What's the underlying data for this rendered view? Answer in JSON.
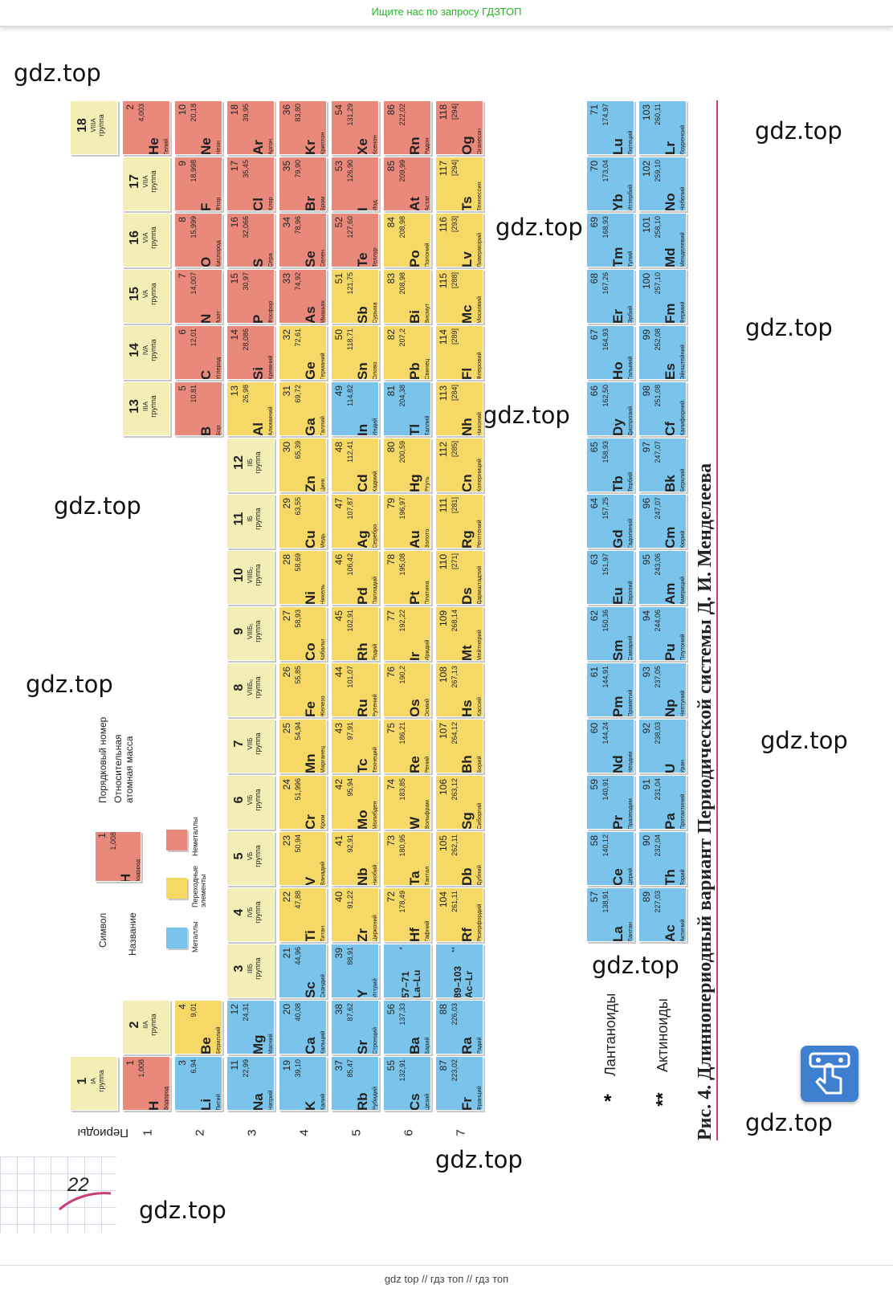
{
  "top_banner": "Ищите нас по запросу ГДЗТОП",
  "bottom_banner": "gdz top  //  гдз топ  //  гдз топ",
  "watermark": "gdz.top",
  "page_number": "22",
  "caption": "Рис. 4. Длиннопериодный вариант Периодической системы Д. И. Менделеева",
  "periods_label": "Периоды",
  "periods": [
    "1",
    "2",
    "3",
    "4",
    "5",
    "6",
    "7"
  ],
  "colors": {
    "nonmetal": "#e9897b",
    "transition": "#f6d867",
    "metal": "#7ac4ec",
    "group": "#f3eeb6"
  },
  "legend": {
    "symbol_label": "Символ",
    "name_label": "Название",
    "number_label": "Порядковый номер",
    "mass_label": "Относительная атомная масса",
    "sample": {
      "sym": "H",
      "num": "1",
      "mass": "1,008",
      "name": "Водород"
    },
    "metals": "Металлы",
    "transition": "Переходные элементы",
    "nonmetals": "Неметаллы"
  },
  "groups": [
    {
      "n": "1",
      "r": "IA",
      "w": "группа"
    },
    {
      "n": "2",
      "r": "IIA",
      "w": "группа"
    },
    {
      "n": "3",
      "r": "IIIБ",
      "w": "группа"
    },
    {
      "n": "4",
      "r": "IVБ",
      "w": "группа"
    },
    {
      "n": "5",
      "r": "VБ",
      "w": "группа"
    },
    {
      "n": "6",
      "r": "VIБ",
      "w": "группа"
    },
    {
      "n": "7",
      "r": "VIIБ",
      "w": "группа"
    },
    {
      "n": "8",
      "r": "VIIIБ₀",
      "w": "группа"
    },
    {
      "n": "9",
      "r": "VIIIБ₁",
      "w": "группа"
    },
    {
      "n": "10",
      "r": "VIIIБ₂",
      "w": "группа"
    },
    {
      "n": "11",
      "r": "IБ",
      "w": "группа"
    },
    {
      "n": "12",
      "r": "IIБ",
      "w": "группа"
    },
    {
      "n": "13",
      "r": "IIIA",
      "w": "группа"
    },
    {
      "n": "14",
      "r": "IVA",
      "w": "группа"
    },
    {
      "n": "15",
      "r": "VA",
      "w": "группа"
    },
    {
      "n": "16",
      "r": "VIA",
      "w": "группа"
    },
    {
      "n": "17",
      "r": "VIIA",
      "w": "группа"
    },
    {
      "n": "18",
      "r": "VIIIA",
      "w": "группа"
    }
  ],
  "elements": [
    {
      "s": "H",
      "n": "1",
      "m": "1,008",
      "nm": "Водород",
      "p": 1,
      "g": 1,
      "t": "nonmetal"
    },
    {
      "s": "He",
      "n": "2",
      "m": "4,003",
      "nm": "Гелий",
      "p": 1,
      "g": 18,
      "t": "nonmetal"
    },
    {
      "s": "Li",
      "n": "3",
      "m": "6,94",
      "nm": "Литий",
      "p": 2,
      "g": 1,
      "t": "metal"
    },
    {
      "s": "Be",
      "n": "4",
      "m": "9,01",
      "nm": "Бериллий",
      "p": 2,
      "g": 2,
      "t": "transition"
    },
    {
      "s": "B",
      "n": "5",
      "m": "10,81",
      "nm": "Бор",
      "p": 2,
      "g": 13,
      "t": "nonmetal"
    },
    {
      "s": "C",
      "n": "6",
      "m": "12,01",
      "nm": "Углерод",
      "p": 2,
      "g": 14,
      "t": "nonmetal"
    },
    {
      "s": "N",
      "n": "7",
      "m": "14,007",
      "nm": "Азот",
      "p": 2,
      "g": 15,
      "t": "nonmetal"
    },
    {
      "s": "O",
      "n": "8",
      "m": "15,999",
      "nm": "Кислород",
      "p": 2,
      "g": 16,
      "t": "nonmetal"
    },
    {
      "s": "F",
      "n": "9",
      "m": "18,998",
      "nm": "Фтор",
      "p": 2,
      "g": 17,
      "t": "nonmetal"
    },
    {
      "s": "Ne",
      "n": "10",
      "m": "20,18",
      "nm": "Неон",
      "p": 2,
      "g": 18,
      "t": "nonmetal"
    },
    {
      "s": "Na",
      "n": "11",
      "m": "22,99",
      "nm": "Натрий",
      "p": 3,
      "g": 1,
      "t": "metal"
    },
    {
      "s": "Mg",
      "n": "12",
      "m": "24,31",
      "nm": "Магний",
      "p": 3,
      "g": 2,
      "t": "metal"
    },
    {
      "s": "Al",
      "n": "13",
      "m": "26,98",
      "nm": "Алюминий",
      "p": 3,
      "g": 13,
      "t": "transition"
    },
    {
      "s": "Si",
      "n": "14",
      "m": "28,086",
      "nm": "Кремний",
      "p": 3,
      "g": 14,
      "t": "nonmetal"
    },
    {
      "s": "P",
      "n": "15",
      "m": "30,97",
      "nm": "Фосфор",
      "p": 3,
      "g": 15,
      "t": "nonmetal"
    },
    {
      "s": "S",
      "n": "16",
      "m": "32,066",
      "nm": "Сера",
      "p": 3,
      "g": 16,
      "t": "nonmetal"
    },
    {
      "s": "Cl",
      "n": "17",
      "m": "35,45",
      "nm": "Хлор",
      "p": 3,
      "g": 17,
      "t": "nonmetal"
    },
    {
      "s": "Ar",
      "n": "18",
      "m": "39,95",
      "nm": "Аргон",
      "p": 3,
      "g": 18,
      "t": "nonmetal"
    },
    {
      "s": "K",
      "n": "19",
      "m": "39,10",
      "nm": "Калий",
      "p": 4,
      "g": 1,
      "t": "metal"
    },
    {
      "s": "Ca",
      "n": "20",
      "m": "40,08",
      "nm": "Кальций",
      "p": 4,
      "g": 2,
      "t": "metal"
    },
    {
      "s": "Sc",
      "n": "21",
      "m": "44,96",
      "nm": "Скандий",
      "p": 4,
      "g": 3,
      "t": "metal"
    },
    {
      "s": "Ti",
      "n": "22",
      "m": "47,88",
      "nm": "Титан",
      "p": 4,
      "g": 4,
      "t": "transition"
    },
    {
      "s": "V",
      "n": "23",
      "m": "50,94",
      "nm": "Ванадий",
      "p": 4,
      "g": 5,
      "t": "transition"
    },
    {
      "s": "Cr",
      "n": "24",
      "m": "51,996",
      "nm": "Хром",
      "p": 4,
      "g": 6,
      "t": "transition"
    },
    {
      "s": "Mn",
      "n": "25",
      "m": "54,94",
      "nm": "Марганец",
      "p": 4,
      "g": 7,
      "t": "transition"
    },
    {
      "s": "Fe",
      "n": "26",
      "m": "55,85",
      "nm": "Железо",
      "p": 4,
      "g": 8,
      "t": "transition"
    },
    {
      "s": "Co",
      "n": "27",
      "m": "58,93",
      "nm": "Кобальт",
      "p": 4,
      "g": 9,
      "t": "transition"
    },
    {
      "s": "Ni",
      "n": "28",
      "m": "58,69",
      "nm": "Никель",
      "p": 4,
      "g": 10,
      "t": "transition"
    },
    {
      "s": "Cu",
      "n": "29",
      "m": "63,55",
      "nm": "Медь",
      "p": 4,
      "g": 11,
      "t": "transition"
    },
    {
      "s": "Zn",
      "n": "30",
      "m": "65,39",
      "nm": "Цинк",
      "p": 4,
      "g": 12,
      "t": "transition"
    },
    {
      "s": "Ga",
      "n": "31",
      "m": "69,72",
      "nm": "Галлий",
      "p": 4,
      "g": 13,
      "t": "transition"
    },
    {
      "s": "Ge",
      "n": "32",
      "m": "72,61",
      "nm": "Германий",
      "p": 4,
      "g": 14,
      "t": "transition"
    },
    {
      "s": "As",
      "n": "33",
      "m": "74,92",
      "nm": "Мышьяк",
      "p": 4,
      "g": 15,
      "t": "nonmetal"
    },
    {
      "s": "Se",
      "n": "34",
      "m": "78,96",
      "nm": "Селен",
      "p": 4,
      "g": 16,
      "t": "nonmetal"
    },
    {
      "s": "Br",
      "n": "35",
      "m": "79,90",
      "nm": "Бром",
      "p": 4,
      "g": 17,
      "t": "nonmetal"
    },
    {
      "s": "Kr",
      "n": "36",
      "m": "83,80",
      "nm": "Криптон",
      "p": 4,
      "g": 18,
      "t": "nonmetal"
    },
    {
      "s": "Rb",
      "n": "37",
      "m": "85,47",
      "nm": "Рубидий",
      "p": 5,
      "g": 1,
      "t": "metal"
    },
    {
      "s": "Sr",
      "n": "38",
      "m": "87,62",
      "nm": "Стронций",
      "p": 5,
      "g": 2,
      "t": "metal"
    },
    {
      "s": "Y",
      "n": "39",
      "m": "88,91",
      "nm": "Иттрий",
      "p": 5,
      "g": 3,
      "t": "metal"
    },
    {
      "s": "Zr",
      "n": "40",
      "m": "91,22",
      "nm": "Цирконий",
      "p": 5,
      "g": 4,
      "t": "transition"
    },
    {
      "s": "Nb",
      "n": "41",
      "m": "92,91",
      "nm": "Ниобий",
      "p": 5,
      "g": 5,
      "t": "transition"
    },
    {
      "s": "Mo",
      "n": "42",
      "m": "95,94",
      "nm": "Молибден",
      "p": 5,
      "g": 6,
      "t": "transition"
    },
    {
      "s": "Tc",
      "n": "43",
      "m": "97,91",
      "nm": "Технеций",
      "p": 5,
      "g": 7,
      "t": "transition"
    },
    {
      "s": "Ru",
      "n": "44",
      "m": "101,07",
      "nm": "Рутений",
      "p": 5,
      "g": 8,
      "t": "transition"
    },
    {
      "s": "Rh",
      "n": "45",
      "m": "102,91",
      "nm": "Родий",
      "p": 5,
      "g": 9,
      "t": "transition"
    },
    {
      "s": "Pd",
      "n": "46",
      "m": "106,42",
      "nm": "Палладий",
      "p": 5,
      "g": 10,
      "t": "transition"
    },
    {
      "s": "Ag",
      "n": "47",
      "m": "107,87",
      "nm": "Серебро",
      "p": 5,
      "g": 11,
      "t": "transition"
    },
    {
      "s": "Cd",
      "n": "48",
      "m": "112,41",
      "nm": "Кадмий",
      "p": 5,
      "g": 12,
      "t": "transition"
    },
    {
      "s": "In",
      "n": "49",
      "m": "114,82",
      "nm": "Индий",
      "p": 5,
      "g": 13,
      "t": "metal"
    },
    {
      "s": "Sn",
      "n": "50",
      "m": "118,71",
      "nm": "Олово",
      "p": 5,
      "g": 14,
      "t": "transition"
    },
    {
      "s": "Sb",
      "n": "51",
      "m": "121,75",
      "nm": "Сурьма",
      "p": 5,
      "g": 15,
      "t": "transition"
    },
    {
      "s": "Te",
      "n": "52",
      "m": "127,60",
      "nm": "Теллур",
      "p": 5,
      "g": 16,
      "t": "nonmetal"
    },
    {
      "s": "I",
      "n": "53",
      "m": "126,90",
      "nm": "Иод",
      "p": 5,
      "g": 17,
      "t": "nonmetal"
    },
    {
      "s": "Xe",
      "n": "54",
      "m": "131,29",
      "nm": "Ксенон",
      "p": 5,
      "g": 18,
      "t": "nonmetal"
    },
    {
      "s": "Cs",
      "n": "55",
      "m": "132,91",
      "nm": "Цезий",
      "p": 6,
      "g": 1,
      "t": "metal"
    },
    {
      "s": "Ba",
      "n": "56",
      "m": "137,33",
      "nm": "Барий",
      "p": 6,
      "g": 2,
      "t": "metal"
    },
    {
      "s": "57–71\nLa–Lu",
      "n": "",
      "m": "*",
      "nm": "",
      "p": 6,
      "g": 3,
      "t": "metal"
    },
    {
      "s": "Hf",
      "n": "72",
      "m": "178,49",
      "nm": "Гафний",
      "p": 6,
      "g": 4,
      "t": "transition"
    },
    {
      "s": "Ta",
      "n": "73",
      "m": "180,95",
      "nm": "Тантал",
      "p": 6,
      "g": 5,
      "t": "transition"
    },
    {
      "s": "W",
      "n": "74",
      "m": "183,85",
      "nm": "Вольфрам",
      "p": 6,
      "g": 6,
      "t": "transition"
    },
    {
      "s": "Re",
      "n": "75",
      "m": "186,21",
      "nm": "Рений",
      "p": 6,
      "g": 7,
      "t": "transition"
    },
    {
      "s": "Os",
      "n": "76",
      "m": "190,2",
      "nm": "Осмий",
      "p": 6,
      "g": 8,
      "t": "transition"
    },
    {
      "s": "Ir",
      "n": "77",
      "m": "192,22",
      "nm": "Иридий",
      "p": 6,
      "g": 9,
      "t": "transition"
    },
    {
      "s": "Pt",
      "n": "78",
      "m": "195,08",
      "nm": "Платина",
      "p": 6,
      "g": 10,
      "t": "transition"
    },
    {
      "s": "Au",
      "n": "79",
      "m": "196,97",
      "nm": "Золото",
      "p": 6,
      "g": 11,
      "t": "transition"
    },
    {
      "s": "Hg",
      "n": "80",
      "m": "200,59",
      "nm": "Ртуть",
      "p": 6,
      "g": 12,
      "t": "transition"
    },
    {
      "s": "Tl",
      "n": "81",
      "m": "204,38",
      "nm": "Таллий",
      "p": 6,
      "g": 13,
      "t": "metal"
    },
    {
      "s": "Pb",
      "n": "82",
      "m": "207,2",
      "nm": "Свинец",
      "p": 6,
      "g": 14,
      "t": "transition"
    },
    {
      "s": "Bi",
      "n": "83",
      "m": "208,98",
      "nm": "Висмут",
      "p": 6,
      "g": 15,
      "t": "transition"
    },
    {
      "s": "Po",
      "n": "84",
      "m": "208,98",
      "nm": "Полоний",
      "p": 6,
      "g": 16,
      "t": "transition"
    },
    {
      "s": "At",
      "n": "85",
      "m": "209,99",
      "nm": "Астат",
      "p": 6,
      "g": 17,
      "t": "nonmetal"
    },
    {
      "s": "Rn",
      "n": "86",
      "m": "222,02",
      "nm": "Радон",
      "p": 6,
      "g": 18,
      "t": "nonmetal"
    },
    {
      "s": "Fr",
      "n": "87",
      "m": "223,02",
      "nm": "Франций",
      "p": 7,
      "g": 1,
      "t": "metal"
    },
    {
      "s": "Ra",
      "n": "88",
      "m": "226,03",
      "nm": "Радий",
      "p": 7,
      "g": 2,
      "t": "metal"
    },
    {
      "s": "89–103\nAc–Lr",
      "n": "",
      "m": "**",
      "nm": "",
      "p": 7,
      "g": 3,
      "t": "metal"
    },
    {
      "s": "Rf",
      "n": "104",
      "m": "261,11",
      "nm": "Резерфордий",
      "p": 7,
      "g": 4,
      "t": "transition"
    },
    {
      "s": "Db",
      "n": "105",
      "m": "262,11",
      "nm": "Дубний",
      "p": 7,
      "g": 5,
      "t": "transition"
    },
    {
      "s": "Sg",
      "n": "106",
      "m": "263,12",
      "nm": "Сиборгий",
      "p": 7,
      "g": 6,
      "t": "transition"
    },
    {
      "s": "Bh",
      "n": "107",
      "m": "264,12",
      "nm": "Борий",
      "p": 7,
      "g": 7,
      "t": "transition"
    },
    {
      "s": "Hs",
      "n": "108",
      "m": "267,13",
      "nm": "Хассий",
      "p": 7,
      "g": 8,
      "t": "transition"
    },
    {
      "s": "Mt",
      "n": "109",
      "m": "268,14",
      "nm": "Мейтнерий",
      "p": 7,
      "g": 9,
      "t": "transition"
    },
    {
      "s": "Ds",
      "n": "110",
      "m": "[271]",
      "nm": "Дармштадтий",
      "p": 7,
      "g": 10,
      "t": "transition"
    },
    {
      "s": "Rg",
      "n": "111",
      "m": "[281]",
      "nm": "Рентгений",
      "p": 7,
      "g": 11,
      "t": "transition"
    },
    {
      "s": "Cn",
      "n": "112",
      "m": "[285]",
      "nm": "Коперниций",
      "p": 7,
      "g": 12,
      "t": "transition"
    },
    {
      "s": "Nh",
      "n": "113",
      "m": "[284]",
      "nm": "Нихоний",
      "p": 7,
      "g": 13,
      "t": "transition"
    },
    {
      "s": "Fl",
      "n": "114",
      "m": "[289]",
      "nm": "Флеровий",
      "p": 7,
      "g": 14,
      "t": "transition"
    },
    {
      "s": "Mc",
      "n": "115",
      "m": "[288]",
      "nm": "Московий",
      "p": 7,
      "g": 15,
      "t": "transition"
    },
    {
      "s": "Lv",
      "n": "116",
      "m": "[293]",
      "nm": "Ливерморий",
      "p": 7,
      "g": 16,
      "t": "transition"
    },
    {
      "s": "Ts",
      "n": "117",
      "m": "[294]",
      "nm": "Теннессин",
      "p": 7,
      "g": 17,
      "t": "transition"
    },
    {
      "s": "Og",
      "n": "118",
      "m": "[294]",
      "nm": "Оганесон",
      "p": 7,
      "g": 18,
      "t": "nonmetal"
    }
  ],
  "lanthanides_label": "Лантаноиды",
  "actinides_label": "Актиноиды",
  "lanthanides_mark": "*",
  "actinides_mark": "**",
  "lanthanides": [
    {
      "s": "La",
      "n": "57",
      "m": "138,91",
      "nm": "Лантан"
    },
    {
      "s": "Ce",
      "n": "58",
      "m": "140,12",
      "nm": "Церий"
    },
    {
      "s": "Pr",
      "n": "59",
      "m": "140,91",
      "nm": "Празеодим"
    },
    {
      "s": "Nd",
      "n": "60",
      "m": "144,24",
      "nm": "Неодим"
    },
    {
      "s": "Pm",
      "n": "61",
      "m": "144,91",
      "nm": "Прометий"
    },
    {
      "s": "Sm",
      "n": "62",
      "m": "150,36",
      "nm": "Самарий"
    },
    {
      "s": "Eu",
      "n": "63",
      "m": "151,97",
      "nm": "Европий"
    },
    {
      "s": "Gd",
      "n": "64",
      "m": "157,25",
      "nm": "Гадолиний"
    },
    {
      "s": "Tb",
      "n": "65",
      "m": "158,93",
      "nm": "Тербий"
    },
    {
      "s": "Dy",
      "n": "66",
      "m": "162,50",
      "nm": "Диспрозий"
    },
    {
      "s": "Ho",
      "n": "67",
      "m": "164,93",
      "nm": "Гольмий"
    },
    {
      "s": "Er",
      "n": "68",
      "m": "167,26",
      "nm": "Эрбий"
    },
    {
      "s": "Tm",
      "n": "69",
      "m": "168,93",
      "nm": "Тулий"
    },
    {
      "s": "Yb",
      "n": "70",
      "m": "173,04",
      "nm": "Иттербий"
    },
    {
      "s": "Lu",
      "n": "71",
      "m": "174,97",
      "nm": "Лютеций"
    }
  ],
  "actinides": [
    {
      "s": "Ac",
      "n": "89",
      "m": "227,03",
      "nm": "Актиний"
    },
    {
      "s": "Th",
      "n": "90",
      "m": "232,04",
      "nm": "Торий"
    },
    {
      "s": "Pa",
      "n": "91",
      "m": "231,04",
      "nm": "Протактиний"
    },
    {
      "s": "U",
      "n": "92",
      "m": "238,03",
      "nm": "Уран"
    },
    {
      "s": "Np",
      "n": "93",
      "m": "237,05",
      "nm": "Нептуний"
    },
    {
      "s": "Pu",
      "n": "94",
      "m": "244,06",
      "nm": "Плутоний"
    },
    {
      "s": "Am",
      "n": "95",
      "m": "243,06",
      "nm": "Америций"
    },
    {
      "s": "Cm",
      "n": "96",
      "m": "247,07",
      "nm": "Кюрий"
    },
    {
      "s": "Bk",
      "n": "97",
      "m": "247,07",
      "nm": "Берклий"
    },
    {
      "s": "Cf",
      "n": "98",
      "m": "251,08",
      "nm": "Калифорний"
    },
    {
      "s": "Es",
      "n": "99",
      "m": "252,08",
      "nm": "Эйнштейний"
    },
    {
      "s": "Fm",
      "n": "100",
      "m": "257,10",
      "nm": "Фермий"
    },
    {
      "s": "Md",
      "n": "101",
      "m": "258,10",
      "nm": "Менделевий"
    },
    {
      "s": "No",
      "n": "102",
      "m": "259,10",
      "nm": "Нобелий"
    },
    {
      "s": "Lr",
      "n": "103",
      "m": "260,11",
      "nm": "Лоуренсий"
    }
  ]
}
